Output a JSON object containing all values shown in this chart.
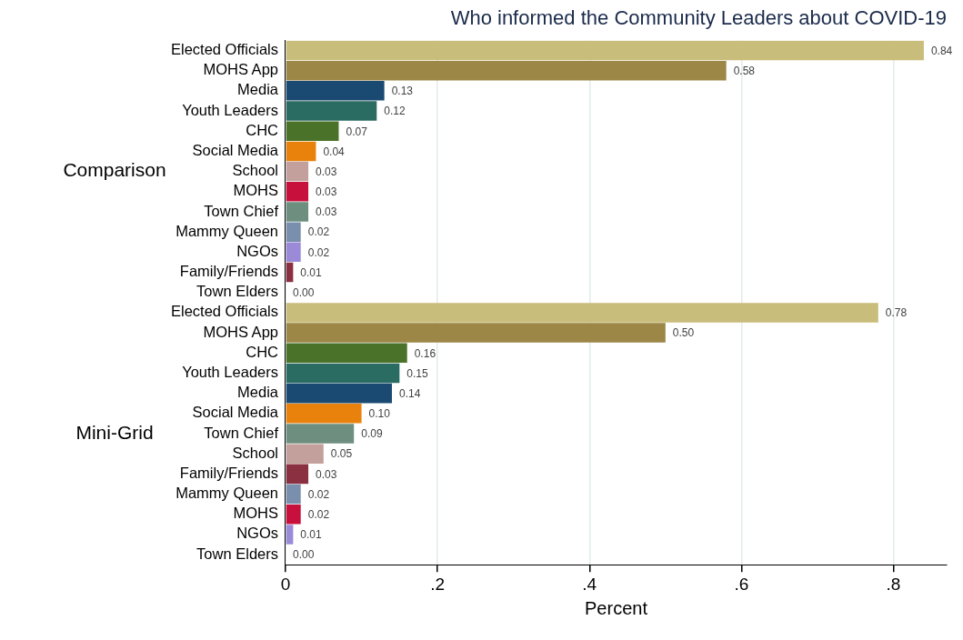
{
  "chart_data": {
    "type": "bar",
    "orientation": "horizontal",
    "title": "Who informed the Community Leaders about COVID-19",
    "xlabel": "Percent",
    "categories": [
      "Elected Officials",
      "MOHS App",
      "Media",
      "Youth Leaders",
      "CHC",
      "Social Media",
      "School",
      "MOHS",
      "Town Chief",
      "Mammy Queen",
      "NGOs",
      "Family/Friends",
      "Town Elders",
      "Elected Officials",
      "MOHS App",
      "CHC",
      "Youth Leaders",
      "Media",
      "Social Media",
      "Town Chief",
      "School",
      "Family/Friends",
      "Mammy Queen",
      "MOHS",
      "NGOs",
      "Town Elders"
    ],
    "values": [
      0.84,
      0.58,
      0.13,
      0.12,
      0.07,
      0.04,
      0.03,
      0.03,
      0.03,
      0.02,
      0.02,
      0.01,
      0.0,
      0.78,
      0.5,
      0.16,
      0.15,
      0.14,
      0.1,
      0.09,
      0.05,
      0.03,
      0.02,
      0.02,
      0.01,
      0.0
    ],
    "colors": [
      "#c8bd7a",
      "#9c8747",
      "#1a4a72",
      "#2a6b62",
      "#4a7228",
      "#e8820c",
      "#c4a09c",
      "#c8103c",
      "#6e8f80",
      "#7a8fae",
      "#9a8ad8",
      "#8a3040",
      "#8a8a8a",
      "#c8bd7a",
      "#9c8747",
      "#4a7228",
      "#2a6b62",
      "#1a4a72",
      "#e8820c",
      "#6e8f80",
      "#c4a09c",
      "#8a3040",
      "#7a8fae",
      "#c8103c",
      "#9a8ad8",
      "#8a8a8a"
    ],
    "value_labels": [
      "0.84",
      "0.58",
      "0.13",
      "0.12",
      "0.07",
      "0.04",
      "0.03",
      "0.03",
      "0.03",
      "0.02",
      "0.02",
      "0.01",
      "0.00",
      "0.78",
      "0.50",
      "0.16",
      "0.15",
      "0.14",
      "0.10",
      "0.09",
      "0.05",
      "0.03",
      "0.02",
      "0.02",
      "0.01",
      "0.00"
    ],
    "annotations": [
      "Comparison",
      "Mini-Grid"
    ],
    "xlim": [
      0,
      0.87
    ],
    "xticks": [
      0,
      {
        "value": 0.2,
        "label": ".2"
      },
      {
        "value": 0.4,
        "label": ".4"
      },
      {
        "value": 0.6,
        "label": ".6"
      },
      {
        "value": 0.8,
        "label": ".8"
      }
    ],
    "grid": "x",
    "legend": false
  }
}
